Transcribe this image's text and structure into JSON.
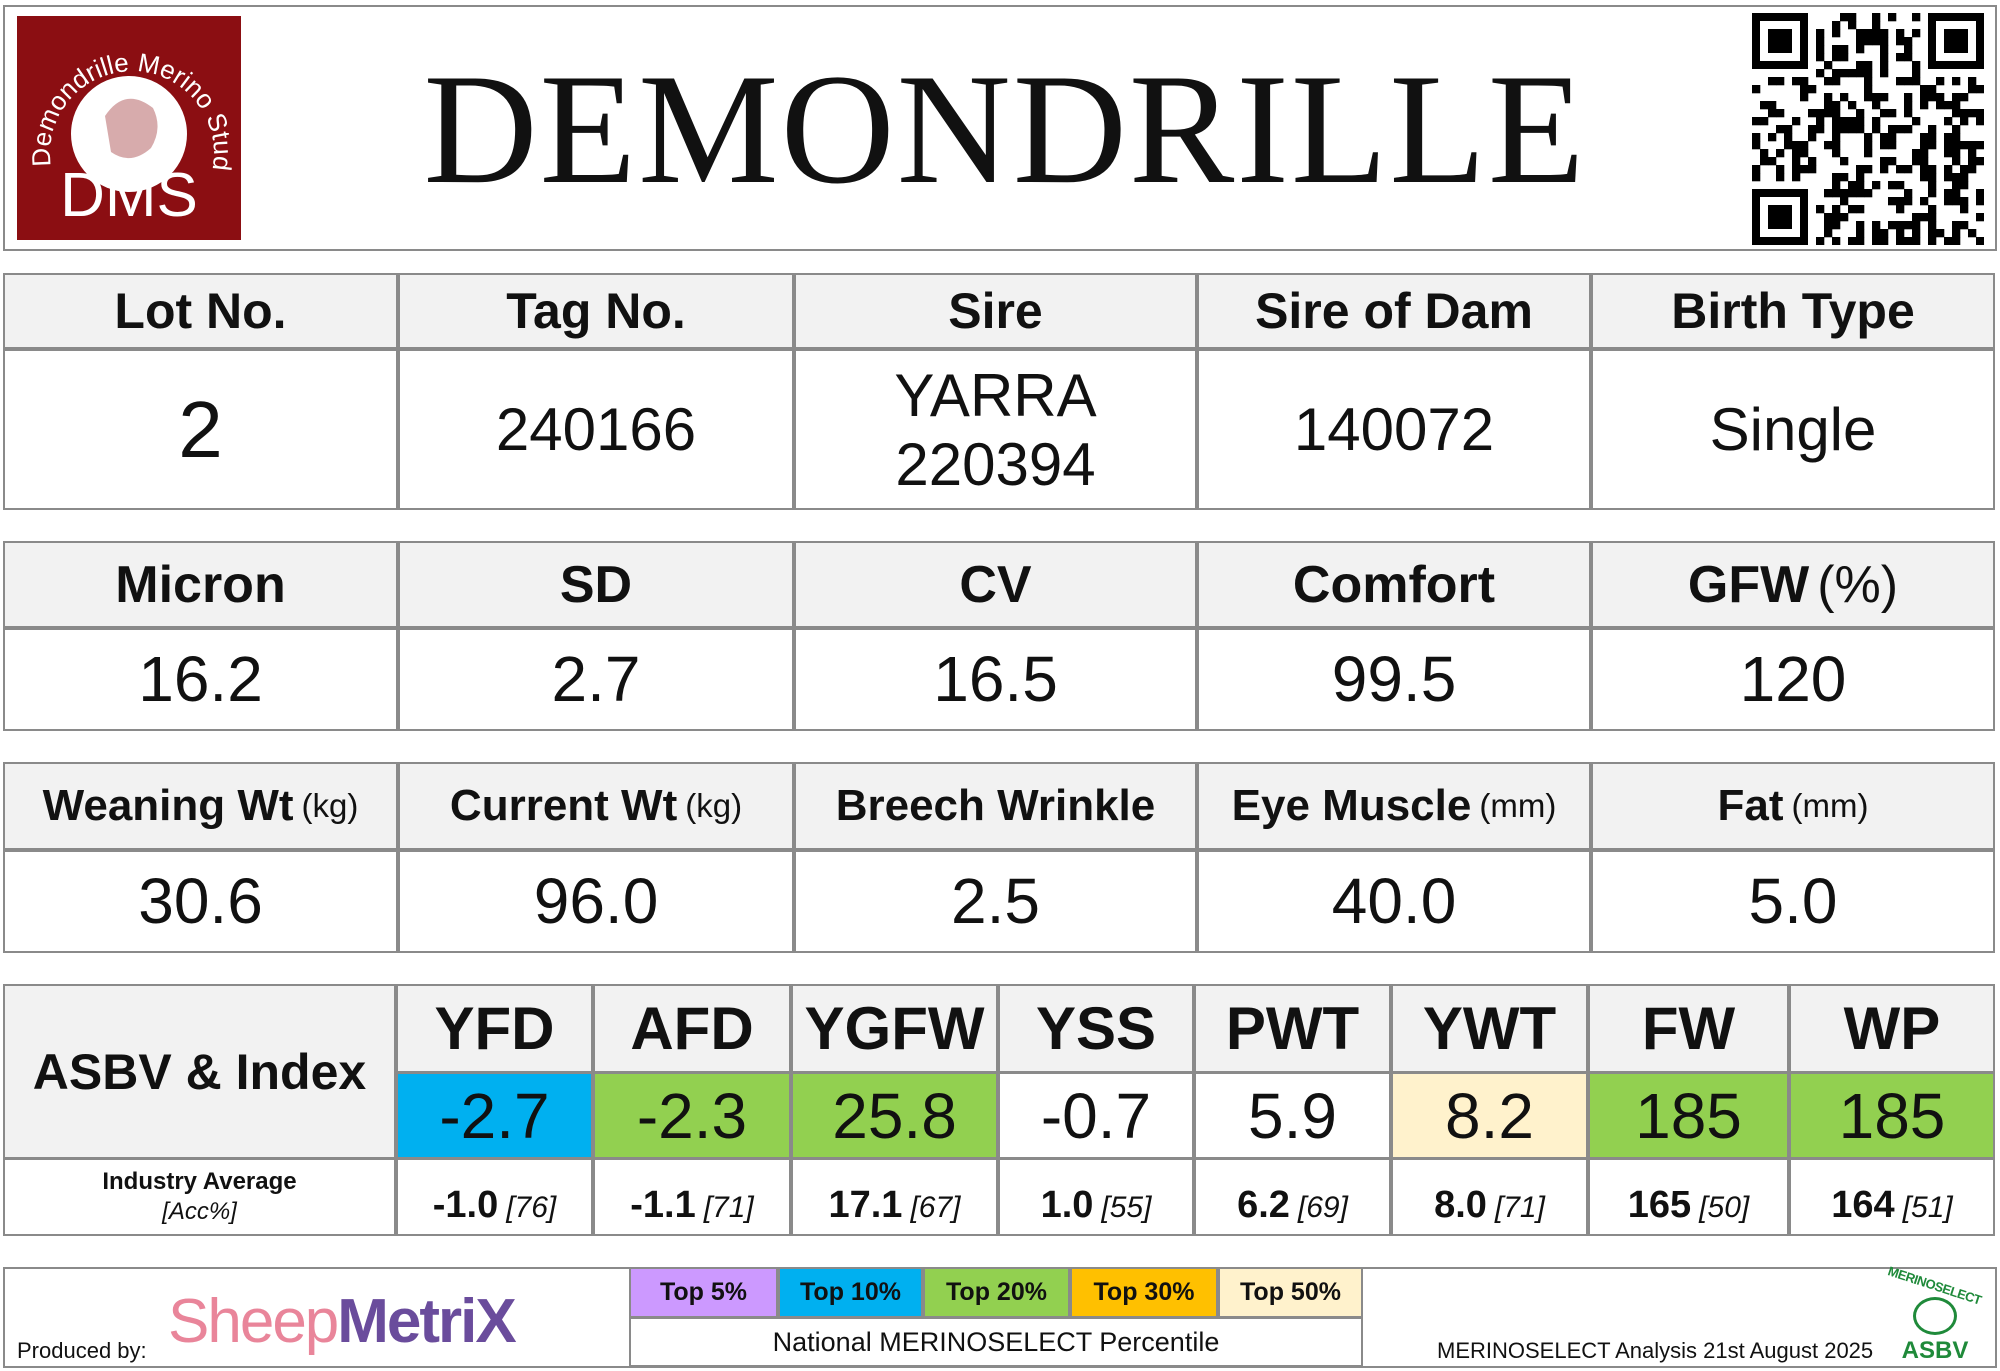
{
  "header": {
    "title": "DEMONDRILLE",
    "logo": {
      "text": "Demondrille Merino Stud",
      "initials": "DMS"
    }
  },
  "details": {
    "columns": [
      {
        "label": "Lot No."
      },
      {
        "label": "Tag No."
      },
      {
        "label": "Sire"
      },
      {
        "label": "Sire of Dam"
      },
      {
        "label": "Birth Type"
      }
    ],
    "values": [
      [
        "2"
      ],
      [
        "240166"
      ],
      [
        "YARRA",
        "220394"
      ],
      [
        "140072"
      ],
      [
        "Single"
      ]
    ]
  },
  "wool": {
    "columns": [
      {
        "label": "Micron"
      },
      {
        "label": "SD"
      },
      {
        "label": "CV"
      },
      {
        "label": "Comfort"
      },
      {
        "label": "GFW",
        "unit": "(%)"
      }
    ],
    "values": [
      [
        "16.2"
      ],
      [
        "2.7"
      ],
      [
        "16.5"
      ],
      [
        "99.5"
      ],
      [
        "120"
      ]
    ]
  },
  "body": {
    "columns": [
      {
        "label": "Weaning Wt",
        "unit": "(kg)"
      },
      {
        "label": "Current Wt",
        "unit": "(kg)"
      },
      {
        "label": "Breech Wrinkle"
      },
      {
        "label": "Eye Muscle",
        "unit": "(mm)"
      },
      {
        "label": "Fat",
        "unit": "(mm)"
      }
    ],
    "values": [
      [
        "30.6"
      ],
      [
        "96.0"
      ],
      [
        "2.5"
      ],
      [
        "40.0"
      ],
      [
        "5.0"
      ]
    ]
  },
  "asbv": {
    "title": "ASBV & Index",
    "average_label": "Industry Average",
    "accuracy_label": "[Acc%]",
    "traits": [
      {
        "name": "YFD",
        "value": "-2.7",
        "color": "#00b0f0",
        "average": "-1.0",
        "accuracy": "[76]"
      },
      {
        "name": "AFD",
        "value": "-2.3",
        "color": "#92d050",
        "average": "-1.1",
        "accuracy": "[71]"
      },
      {
        "name": "YGFW",
        "value": "25.8",
        "color": "#92d050",
        "average": "17.1",
        "accuracy": "[67]"
      },
      {
        "name": "YSS",
        "value": "-0.7",
        "color": "#ffffff",
        "average": "1.0",
        "accuracy": "[55]"
      },
      {
        "name": "PWT",
        "value": "5.9",
        "color": "#ffffff",
        "average": "6.2",
        "accuracy": "[69]"
      },
      {
        "name": "YWT",
        "value": "8.2",
        "color": "#fff2cc",
        "average": "8.0",
        "accuracy": "[71]"
      },
      {
        "name": "FW",
        "value": "185",
        "color": "#92d050",
        "average": "165",
        "accuracy": "[50]"
      },
      {
        "name": "WP",
        "value": "185",
        "color": "#92d050",
        "average": "164",
        "accuracy": "[51]"
      }
    ]
  },
  "footer": {
    "produced_by": "Produced by:",
    "brand": [
      "Sheep",
      "MetriX"
    ],
    "legend": [
      {
        "label": "Top 5%",
        "color": "#cc99ff"
      },
      {
        "label": "Top 10%",
        "color": "#00b0f0"
      },
      {
        "label": "Top 20%",
        "color": "#92d050"
      },
      {
        "label": "Top 30%",
        "color": "#ffc000"
      },
      {
        "label": "Top 50%",
        "color": "#fff2cc"
      }
    ],
    "legend_title": "National MERINOSELECT Percentile",
    "analysis": "MERINOSELECT Analysis 21st August 2025",
    "badge": [
      "MERINOSELECT",
      "ASBV"
    ]
  }
}
